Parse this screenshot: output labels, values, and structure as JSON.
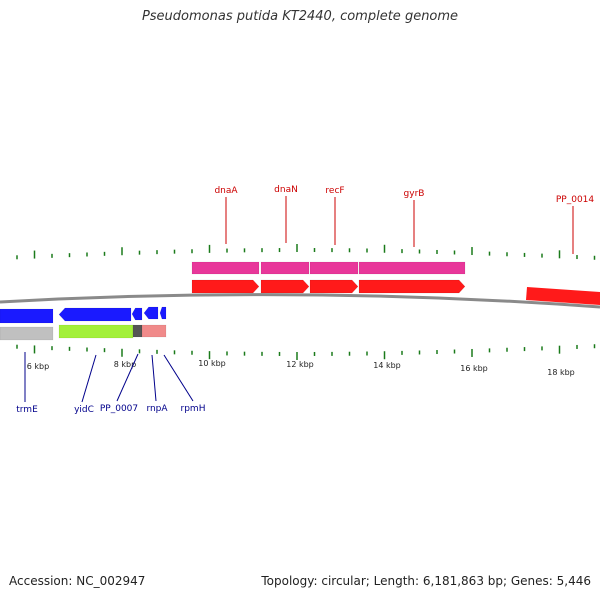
{
  "title": "Pseudomonas putida KT2440, complete genome",
  "footer": {
    "accession": "Accession: NC_002947",
    "summary": "Topology: circular; Length: 6,181,863 bp; Genes: 5,446"
  },
  "colors": {
    "backbone": "#8a8a8a",
    "tick": "#1a7a1a",
    "tick_label": "#222222",
    "forward_gene": "#ff1a1a",
    "forward_gene_lane2": "#e8379a",
    "forward_label": "#cc0000",
    "reverse_gene": "#1a1aff",
    "reverse_gene_lane2": "#c0c0c0",
    "reverse_label": "#00008b",
    "cds_green": "#a3f03a",
    "cds_salmon": "#f08a8a",
    "cds_dark": "#555555"
  },
  "track": {
    "tick_labels": [
      "6 kbp",
      "8 kbp",
      "10 kbp",
      "12 kbp",
      "14 kbp",
      "16 kbp",
      "18 kbp"
    ]
  },
  "forward_genes": [
    {
      "name": "dnaA"
    },
    {
      "name": "dnaN"
    },
    {
      "name": "recF"
    },
    {
      "name": "gyrB"
    },
    {
      "name": "PP_0014"
    }
  ],
  "reverse_genes": [
    {
      "name": "trmE"
    },
    {
      "name": "yidC"
    },
    {
      "name": "PP_0007"
    },
    {
      "name": "rnpA"
    },
    {
      "name": "rpmH"
    }
  ]
}
